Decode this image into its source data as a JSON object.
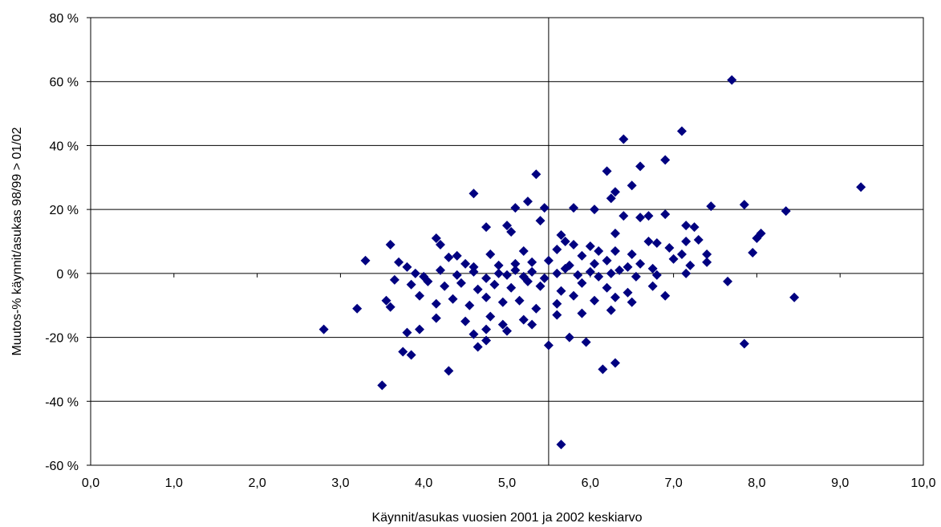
{
  "chart_data": {
    "type": "scatter",
    "xlabel": "Käynnit/asukas vuosien 2001 ja 2002 keskiarvo",
    "ylabel": "Muutos-% käynnit/asukas 98/99 > 01/02",
    "xlim": [
      0,
      10
    ],
    "ylim": [
      -60,
      80
    ],
    "x_ticks": [
      "0,0",
      "1,0",
      "2,0",
      "3,0",
      "4,0",
      "5,0",
      "6,0",
      "7,0",
      "8,0",
      "9,0",
      "10,0"
    ],
    "y_ticks": [
      "80 %",
      "60 %",
      "40 %",
      "20 %",
      "0 %",
      "-20 %",
      "-40 %",
      "-60 %"
    ],
    "grid": "horizontal",
    "reference_line_x": 5.5,
    "marker": "diamond",
    "colors": {
      "marker": "#000080",
      "grid": "#000000",
      "background": "#ffffff"
    },
    "points": [
      [
        7.7,
        60.5
      ],
      [
        7.1,
        44.5
      ],
      [
        6.4,
        42
      ],
      [
        6.9,
        35.5
      ],
      [
        6.6,
        33.5
      ],
      [
        5.35,
        31
      ],
      [
        6.2,
        32
      ],
      [
        6.3,
        25.5
      ],
      [
        6.5,
        27.5
      ],
      [
        9.25,
        27
      ],
      [
        6.25,
        23.5
      ],
      [
        4.6,
        25
      ],
      [
        5.25,
        22.5
      ],
      [
        5.1,
        20.5
      ],
      [
        5.45,
        20.5
      ],
      [
        5.8,
        20.5
      ],
      [
        6.05,
        20
      ],
      [
        7.45,
        21
      ],
      [
        7.85,
        21.5
      ],
      [
        8.35,
        19.5
      ],
      [
        6.9,
        18.5
      ],
      [
        6.4,
        18
      ],
      [
        6.6,
        17.5
      ],
      [
        6.7,
        18
      ],
      [
        5.4,
        16.5
      ],
      [
        5.0,
        15
      ],
      [
        7.15,
        15
      ],
      [
        7.25,
        14.5
      ],
      [
        5.05,
        13
      ],
      [
        4.75,
        14.5
      ],
      [
        5.65,
        12
      ],
      [
        6.3,
        12.5
      ],
      [
        8.05,
        12.5
      ],
      [
        8.0,
        11
      ],
      [
        4.15,
        11
      ],
      [
        4.2,
        9
      ],
      [
        3.6,
        9
      ],
      [
        5.7,
        10
      ],
      [
        6.7,
        10
      ],
      [
        7.15,
        10
      ],
      [
        6.8,
        9.5
      ],
      [
        7.3,
        10.5
      ],
      [
        7.95,
        6.5
      ],
      [
        6.95,
        8
      ],
      [
        7.1,
        6
      ],
      [
        7.4,
        6
      ],
      [
        7.4,
        3.5
      ],
      [
        7.0,
        4.5
      ],
      [
        6.0,
        8.5
      ],
      [
        5.8,
        9
      ],
      [
        6.1,
        7
      ],
      [
        6.3,
        7
      ],
      [
        6.5,
        6
      ],
      [
        5.6,
        7.5
      ],
      [
        5.9,
        5.5
      ],
      [
        4.8,
        6
      ],
      [
        5.2,
        7
      ],
      [
        4.3,
        5
      ],
      [
        4.4,
        5.5
      ],
      [
        3.7,
        3.5
      ],
      [
        3.8,
        2
      ],
      [
        3.3,
        4
      ],
      [
        4.5,
        3
      ],
      [
        4.6,
        2
      ],
      [
        4.9,
        2.5
      ],
      [
        5.1,
        3
      ],
      [
        5.3,
        3.5
      ],
      [
        5.5,
        4
      ],
      [
        5.75,
        2.5
      ],
      [
        6.05,
        3
      ],
      [
        6.2,
        4
      ],
      [
        6.45,
        2
      ],
      [
        6.6,
        3
      ],
      [
        6.75,
        1.5
      ],
      [
        7.2,
        2.5
      ],
      [
        3.9,
        0
      ],
      [
        4.0,
        -1
      ],
      [
        4.2,
        1
      ],
      [
        4.4,
        -0.5
      ],
      [
        4.6,
        0.5
      ],
      [
        4.75,
        -1.5
      ],
      [
        4.9,
        0
      ],
      [
        5.0,
        -0.5
      ],
      [
        5.1,
        1
      ],
      [
        5.2,
        -1
      ],
      [
        5.3,
        0.5
      ],
      [
        5.45,
        -1.5
      ],
      [
        5.6,
        0
      ],
      [
        5.7,
        1.5
      ],
      [
        5.85,
        -0.5
      ],
      [
        6.0,
        0.5
      ],
      [
        6.1,
        -1
      ],
      [
        6.25,
        0
      ],
      [
        6.35,
        1
      ],
      [
        6.55,
        -1
      ],
      [
        6.8,
        -0.5
      ],
      [
        7.15,
        0
      ],
      [
        7.65,
        -2.5
      ],
      [
        3.65,
        -2
      ],
      [
        3.85,
        -3.5
      ],
      [
        4.05,
        -2.5
      ],
      [
        4.25,
        -4
      ],
      [
        4.45,
        -3
      ],
      [
        4.65,
        -5
      ],
      [
        4.85,
        -3.5
      ],
      [
        5.05,
        -4.5
      ],
      [
        5.25,
        -2.5
      ],
      [
        5.4,
        -4
      ],
      [
        5.65,
        -5.5
      ],
      [
        5.9,
        -3
      ],
      [
        6.2,
        -4.5
      ],
      [
        6.45,
        -6
      ],
      [
        6.75,
        -4
      ],
      [
        6.9,
        -7
      ],
      [
        3.55,
        -8.5
      ],
      [
        3.6,
        -10.5
      ],
      [
        3.95,
        -7
      ],
      [
        4.15,
        -9.5
      ],
      [
        4.35,
        -8
      ],
      [
        4.55,
        -10
      ],
      [
        4.75,
        -7.5
      ],
      [
        4.95,
        -9
      ],
      [
        5.15,
        -8.5
      ],
      [
        5.35,
        -11
      ],
      [
        5.6,
        -9.5
      ],
      [
        5.8,
        -7
      ],
      [
        6.05,
        -8.5
      ],
      [
        6.3,
        -7.5
      ],
      [
        6.5,
        -9
      ],
      [
        3.2,
        -11
      ],
      [
        4.15,
        -14
      ],
      [
        4.5,
        -15
      ],
      [
        4.8,
        -13.5
      ],
      [
        4.95,
        -16
      ],
      [
        5.2,
        -14.5
      ],
      [
        5.6,
        -13
      ],
      [
        5.9,
        -12.5
      ],
      [
        6.25,
        -11.5
      ],
      [
        8.45,
        -7.5
      ],
      [
        3.8,
        -18.5
      ],
      [
        3.95,
        -17.5
      ],
      [
        4.6,
        -19
      ],
      [
        4.75,
        -17.5
      ],
      [
        5.0,
        -18
      ],
      [
        5.3,
        -16
      ],
      [
        2.8,
        -17.5
      ],
      [
        4.75,
        -21
      ],
      [
        4.65,
        -23
      ],
      [
        5.5,
        -22.5
      ],
      [
        5.75,
        -20
      ],
      [
        5.95,
        -21.5
      ],
      [
        7.85,
        -22
      ],
      [
        3.75,
        -24.5
      ],
      [
        3.85,
        -25.5
      ],
      [
        6.3,
        -28
      ],
      [
        6.15,
        -30
      ],
      [
        4.3,
        -30.5
      ],
      [
        3.5,
        -35
      ],
      [
        5.65,
        -53.5
      ]
    ]
  }
}
